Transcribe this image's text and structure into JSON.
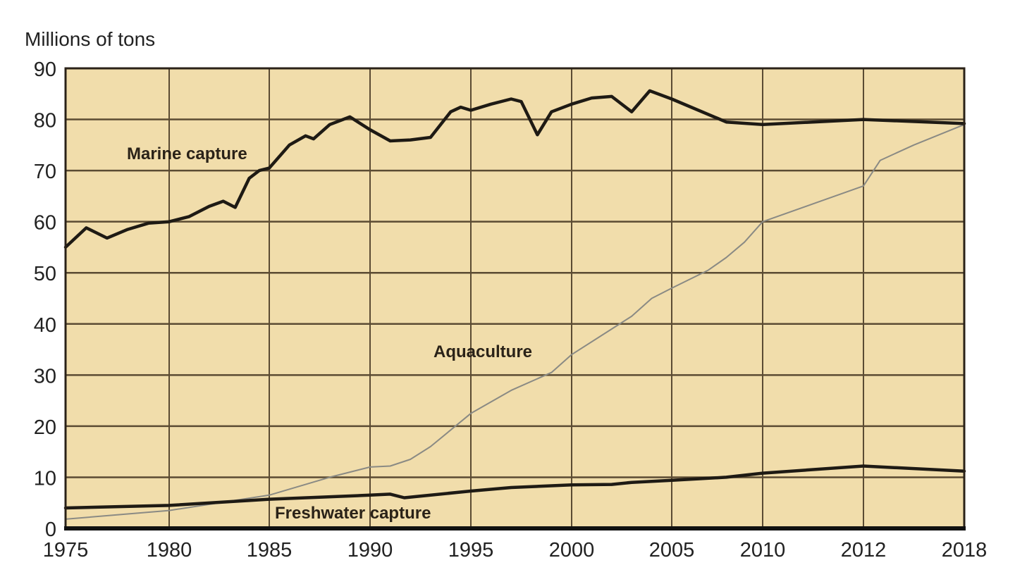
{
  "chart_data": {
    "type": "line",
    "title": "",
    "xlabel": "",
    "ylabel": "Millions of tons",
    "ylim": [
      0,
      90
    ],
    "yticks": [
      0,
      10,
      20,
      30,
      40,
      50,
      60,
      70,
      80,
      90
    ],
    "xticks": [
      "1975",
      "1980",
      "1985",
      "1990",
      "1995",
      "2000",
      "2005",
      "2010",
      "2012",
      "2018"
    ],
    "grid": true,
    "background_color": "#f1ddab",
    "grid_color": "#5b4b33",
    "series": [
      {
        "name": "Marine capture",
        "color": "#1e1a14",
        "points": [
          [
            1975,
            55
          ],
          [
            1976,
            58.8
          ],
          [
            1977,
            56.8
          ],
          [
            1978,
            58.5
          ],
          [
            1979,
            59.7
          ],
          [
            1980,
            60
          ],
          [
            1981,
            61
          ],
          [
            1982,
            63
          ],
          [
            1982.7,
            64
          ],
          [
            1983.3,
            62.8
          ],
          [
            1984,
            68.5
          ],
          [
            1984.5,
            70
          ],
          [
            1985,
            70.5
          ],
          [
            1986,
            75
          ],
          [
            1986.8,
            76.8
          ],
          [
            1987.2,
            76.2
          ],
          [
            1988,
            79
          ],
          [
            1989,
            80.5
          ],
          [
            1990,
            78
          ],
          [
            1991,
            75.8
          ],
          [
            1992,
            76
          ],
          [
            1993,
            76.5
          ],
          [
            1994,
            81.5
          ],
          [
            1994.5,
            82.4
          ],
          [
            1995,
            81.8
          ],
          [
            1996,
            83
          ],
          [
            1997,
            84
          ],
          [
            1997.5,
            83.5
          ],
          [
            1998.3,
            77
          ],
          [
            1999,
            81.5
          ],
          [
            2000,
            83
          ],
          [
            2001,
            84.2
          ],
          [
            2002,
            84.5
          ],
          [
            2003,
            81.5
          ],
          [
            2003.9,
            85.6
          ],
          [
            2005,
            84
          ],
          [
            2008,
            79.5
          ],
          [
            2010,
            79
          ],
          [
            2012,
            80
          ],
          [
            2018,
            79.2
          ]
        ]
      },
      {
        "name": "Aquaculture",
        "color": "#8a8a84",
        "points": [
          [
            1975,
            1.8
          ],
          [
            1980,
            3.5
          ],
          [
            1985,
            6.5
          ],
          [
            1988,
            10
          ],
          [
            1990,
            12
          ],
          [
            1991,
            12.2
          ],
          [
            1992,
            13.5
          ],
          [
            1993,
            16
          ],
          [
            1995,
            22.5
          ],
          [
            1997,
            27
          ],
          [
            1999,
            30.5
          ],
          [
            2000,
            34
          ],
          [
            2002,
            39
          ],
          [
            2003,
            41.5
          ],
          [
            2004,
            45
          ],
          [
            2005,
            47
          ],
          [
            2007,
            50.5
          ],
          [
            2008,
            53
          ],
          [
            2009,
            56
          ],
          [
            2010,
            60
          ],
          [
            2011,
            63.5
          ],
          [
            2012,
            67
          ],
          [
            2013,
            72
          ],
          [
            2015,
            75
          ],
          [
            2018,
            79
          ]
        ]
      },
      {
        "name": "Freshwater capture",
        "color": "#1e1a14",
        "points": [
          [
            1975,
            4
          ],
          [
            1980,
            4.5
          ],
          [
            1985,
            5.7
          ],
          [
            1990,
            6.5
          ],
          [
            1991,
            6.7
          ],
          [
            1991.7,
            6
          ],
          [
            1995,
            7.3
          ],
          [
            1997,
            8
          ],
          [
            2000,
            8.5
          ],
          [
            2002,
            8.6
          ],
          [
            2003,
            9
          ],
          [
            2005,
            9.4
          ],
          [
            2008,
            10
          ],
          [
            2010,
            10.8
          ],
          [
            2012,
            12.2
          ],
          [
            2018,
            11.2
          ]
        ]
      }
    ]
  }
}
